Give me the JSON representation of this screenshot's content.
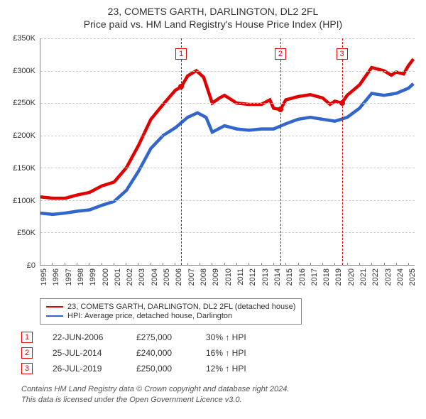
{
  "title": {
    "line1": "23, COMETS GARTH, DARLINGTON, DL2 2FL",
    "line2": "Price paid vs. HM Land Registry's House Price Index (HPI)"
  },
  "chart": {
    "type": "line",
    "background_color": "#ffffff",
    "grid_color": "#cccccc",
    "axis_color": "#888888",
    "xlim": [
      1995,
      2025.5
    ],
    "ylim": [
      0,
      350000
    ],
    "y_ticks": [
      {
        "v": 0,
        "label": "£0"
      },
      {
        "v": 50000,
        "label": "£50K"
      },
      {
        "v": 100000,
        "label": "£100K"
      },
      {
        "v": 150000,
        "label": "£150K"
      },
      {
        "v": 200000,
        "label": "£200K"
      },
      {
        "v": 250000,
        "label": "£250K"
      },
      {
        "v": 300000,
        "label": "£300K"
      },
      {
        "v": 350000,
        "label": "£350K"
      }
    ],
    "x_ticks": [
      1995,
      1996,
      1997,
      1998,
      1999,
      2000,
      2001,
      2002,
      2003,
      2004,
      2005,
      2006,
      2007,
      2008,
      2009,
      2010,
      2011,
      2012,
      2013,
      2014,
      2015,
      2016,
      2017,
      2018,
      2019,
      2020,
      2021,
      2022,
      2023,
      2024,
      2025
    ],
    "series": [
      {
        "name": "23, COMETS GARTH, DARLINGTON, DL2 2FL (detached house)",
        "color": "#e00000",
        "width": 1.5,
        "points": [
          [
            1995.0,
            105000
          ],
          [
            1996.0,
            103000
          ],
          [
            1997.0,
            103000
          ],
          [
            1998.0,
            108000
          ],
          [
            1999.0,
            112000
          ],
          [
            2000.0,
            122000
          ],
          [
            2001.0,
            128000
          ],
          [
            2002.0,
            150000
          ],
          [
            2003.0,
            185000
          ],
          [
            2004.0,
            225000
          ],
          [
            2005.0,
            248000
          ],
          [
            2006.0,
            270000
          ],
          [
            2006.47,
            275000
          ],
          [
            2007.0,
            292000
          ],
          [
            2007.7,
            300000
          ],
          [
            2008.3,
            290000
          ],
          [
            2009.0,
            250000
          ],
          [
            2009.6,
            258000
          ],
          [
            2010.0,
            262000
          ],
          [
            2011.0,
            250000
          ],
          [
            2012.0,
            248000
          ],
          [
            2013.0,
            248000
          ],
          [
            2013.7,
            255000
          ],
          [
            2014.0,
            242000
          ],
          [
            2014.56,
            240000
          ],
          [
            2015.0,
            255000
          ],
          [
            2016.0,
            260000
          ],
          [
            2017.0,
            263000
          ],
          [
            2018.0,
            258000
          ],
          [
            2018.6,
            248000
          ],
          [
            2019.0,
            253000
          ],
          [
            2019.57,
            250000
          ],
          [
            2020.0,
            262000
          ],
          [
            2021.0,
            278000
          ],
          [
            2022.0,
            305000
          ],
          [
            2023.0,
            300000
          ],
          [
            2023.6,
            293000
          ],
          [
            2024.0,
            298000
          ],
          [
            2024.6,
            295000
          ],
          [
            2025.0,
            308000
          ],
          [
            2025.4,
            318000
          ]
        ]
      },
      {
        "name": "HPI: Average price, detached house, Darlington",
        "color": "#3366cc",
        "width": 1.5,
        "points": [
          [
            1995.0,
            80000
          ],
          [
            1996.0,
            78000
          ],
          [
            1997.0,
            80000
          ],
          [
            1998.0,
            83000
          ],
          [
            1999.0,
            85000
          ],
          [
            2000.0,
            92000
          ],
          [
            2001.0,
            98000
          ],
          [
            2002.0,
            115000
          ],
          [
            2003.0,
            145000
          ],
          [
            2004.0,
            180000
          ],
          [
            2005.0,
            200000
          ],
          [
            2006.0,
            212000
          ],
          [
            2007.0,
            228000
          ],
          [
            2007.8,
            235000
          ],
          [
            2008.5,
            228000
          ],
          [
            2009.0,
            205000
          ],
          [
            2010.0,
            215000
          ],
          [
            2011.0,
            210000
          ],
          [
            2012.0,
            208000
          ],
          [
            2013.0,
            210000
          ],
          [
            2014.0,
            210000
          ],
          [
            2015.0,
            218000
          ],
          [
            2016.0,
            225000
          ],
          [
            2017.0,
            228000
          ],
          [
            2018.0,
            225000
          ],
          [
            2019.0,
            222000
          ],
          [
            2020.0,
            228000
          ],
          [
            2021.0,
            242000
          ],
          [
            2022.0,
            265000
          ],
          [
            2023.0,
            262000
          ],
          [
            2024.0,
            265000
          ],
          [
            2025.0,
            273000
          ],
          [
            2025.4,
            280000
          ]
        ]
      }
    ],
    "markers": [
      {
        "n": "1",
        "x": 2006.47,
        "y": 275000,
        "label_y": 335000,
        "color": "#e00000"
      },
      {
        "n": "2",
        "x": 2014.56,
        "y": 240000,
        "label_y": 335000,
        "color": "#e00000"
      },
      {
        "n": "3",
        "x": 2019.57,
        "y": 250000,
        "label_y": 335000,
        "color": "#e00000"
      }
    ]
  },
  "legend": [
    {
      "color": "#e00000",
      "label": "23, COMETS GARTH, DARLINGTON, DL2 2FL (detached house)"
    },
    {
      "color": "#3366cc",
      "label": "HPI: Average price, detached house, Darlington"
    }
  ],
  "sales": [
    {
      "n": "1",
      "date": "22-JUN-2006",
      "price": "£275,000",
      "pct": "30% ↑ HPI"
    },
    {
      "n": "2",
      "date": "25-JUL-2014",
      "price": "£240,000",
      "pct": "16% ↑ HPI"
    },
    {
      "n": "3",
      "date": "26-JUL-2019",
      "price": "£250,000",
      "pct": "12% ↑ HPI"
    }
  ],
  "footer": {
    "line1": "Contains HM Land Registry data © Crown copyright and database right 2024.",
    "line2": "This data is licensed under the Open Government Licence v3.0."
  }
}
